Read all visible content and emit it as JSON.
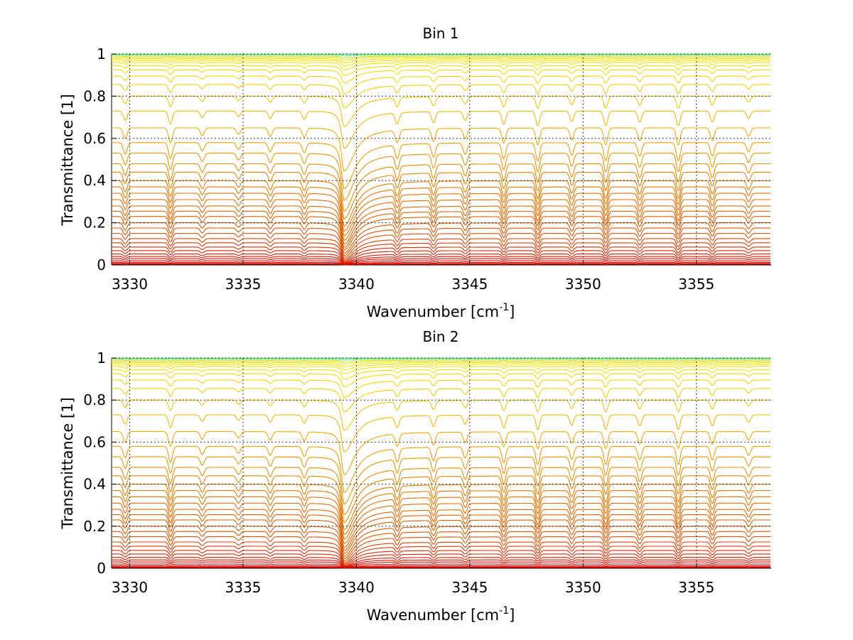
{
  "chart_data": [
    {
      "type": "line",
      "title": "Bin 1",
      "xlabel": "Wavenumber [cm",
      "xlabel_sup": "-1",
      "xlabel_end": "]",
      "ylabel": "Transmittance [1]",
      "xlim": [
        3329.2,
        3358.3
      ],
      "ylim": [
        0,
        1
      ],
      "xticks": [
        3330,
        3335,
        3340,
        3345,
        3350,
        3355
      ],
      "yticks": [
        0,
        0.2,
        0.4,
        0.6,
        0.8,
        1
      ],
      "ytick_labels": [
        "0",
        "0.2",
        "0.4",
        "0.6",
        "0.8",
        "1"
      ],
      "grid": true,
      "series_count": 40,
      "baseline_levels": [
        1.0,
        0.998,
        0.995,
        0.99,
        0.985,
        0.978,
        0.97,
        0.96,
        0.945,
        0.925,
        0.895,
        0.855,
        0.8,
        0.73,
        0.65,
        0.58,
        0.53,
        0.48,
        0.44,
        0.4,
        0.37,
        0.34,
        0.31,
        0.28,
        0.255,
        0.23,
        0.2,
        0.175,
        0.15,
        0.125,
        0.105,
        0.085,
        0.068,
        0.052,
        0.04,
        0.03,
        0.02,
        0.012,
        0.007,
        0.003
      ],
      "colors": {
        "top": "#5fe3b4",
        "high": "#f2e400",
        "mid": "#f0a000",
        "low": "#e05000",
        "bottom": "#e00000"
      }
    },
    {
      "type": "line",
      "title": "Bin 2",
      "xlabel": "Wavenumber [cm",
      "xlabel_sup": "-1",
      "xlabel_end": "]",
      "ylabel": "Transmittance [1]",
      "xlim": [
        3329.2,
        3358.3
      ],
      "ylim": [
        0,
        1
      ],
      "xticks": [
        3330,
        3335,
        3340,
        3345,
        3350,
        3355
      ],
      "yticks": [
        0,
        0.2,
        0.4,
        0.6,
        0.8,
        1
      ],
      "ytick_labels": [
        "0",
        "0.2",
        "0.4",
        "0.6",
        "0.8",
        "1"
      ],
      "grid": true,
      "series_count": 40,
      "baseline_levels": [
        1.0,
        0.998,
        0.995,
        0.99,
        0.985,
        0.978,
        0.97,
        0.96,
        0.945,
        0.925,
        0.895,
        0.855,
        0.8,
        0.73,
        0.65,
        0.58,
        0.53,
        0.48,
        0.44,
        0.4,
        0.37,
        0.34,
        0.31,
        0.28,
        0.255,
        0.23,
        0.2,
        0.175,
        0.15,
        0.125,
        0.105,
        0.085,
        0.068,
        0.052,
        0.04,
        0.03,
        0.02,
        0.012,
        0.007,
        0.003
      ],
      "colors": {
        "top": "#5fe3b4",
        "high": "#f2e400",
        "mid": "#f0a000",
        "low": "#e05000",
        "bottom": "#e00000"
      }
    }
  ],
  "absorption_lines": [
    {
      "x": 3329.8,
      "depth": 0.25,
      "width": 0.12
    },
    {
      "x": 3331.8,
      "depth": 0.35,
      "width": 0.12
    },
    {
      "x": 3333.2,
      "depth": 0.18,
      "width": 0.12
    },
    {
      "x": 3334.8,
      "depth": 0.15,
      "width": 0.12
    },
    {
      "x": 3336.2,
      "depth": 0.2,
      "width": 0.12
    },
    {
      "x": 3337.7,
      "depth": 0.22,
      "width": 0.12
    },
    {
      "x": 3339.45,
      "depth": 1.0,
      "width": 0.14,
      "strong": true
    },
    {
      "x": 3341.8,
      "depth": 0.3,
      "width": 0.12
    },
    {
      "x": 3343.4,
      "depth": 0.3,
      "width": 0.12
    },
    {
      "x": 3344.8,
      "depth": 0.25,
      "width": 0.12
    },
    {
      "x": 3346.5,
      "depth": 0.35,
      "width": 0.12
    },
    {
      "x": 3348.0,
      "depth": 0.4,
      "width": 0.12
    },
    {
      "x": 3349.5,
      "depth": 0.28,
      "width": 0.12
    },
    {
      "x": 3351.0,
      "depth": 0.4,
      "width": 0.12
    },
    {
      "x": 3352.5,
      "depth": 0.3,
      "width": 0.12
    },
    {
      "x": 3354.2,
      "depth": 0.4,
      "width": 0.12
    },
    {
      "x": 3355.7,
      "depth": 0.3,
      "width": 0.12
    },
    {
      "x": 3357.3,
      "depth": 0.2,
      "width": 0.12
    }
  ]
}
